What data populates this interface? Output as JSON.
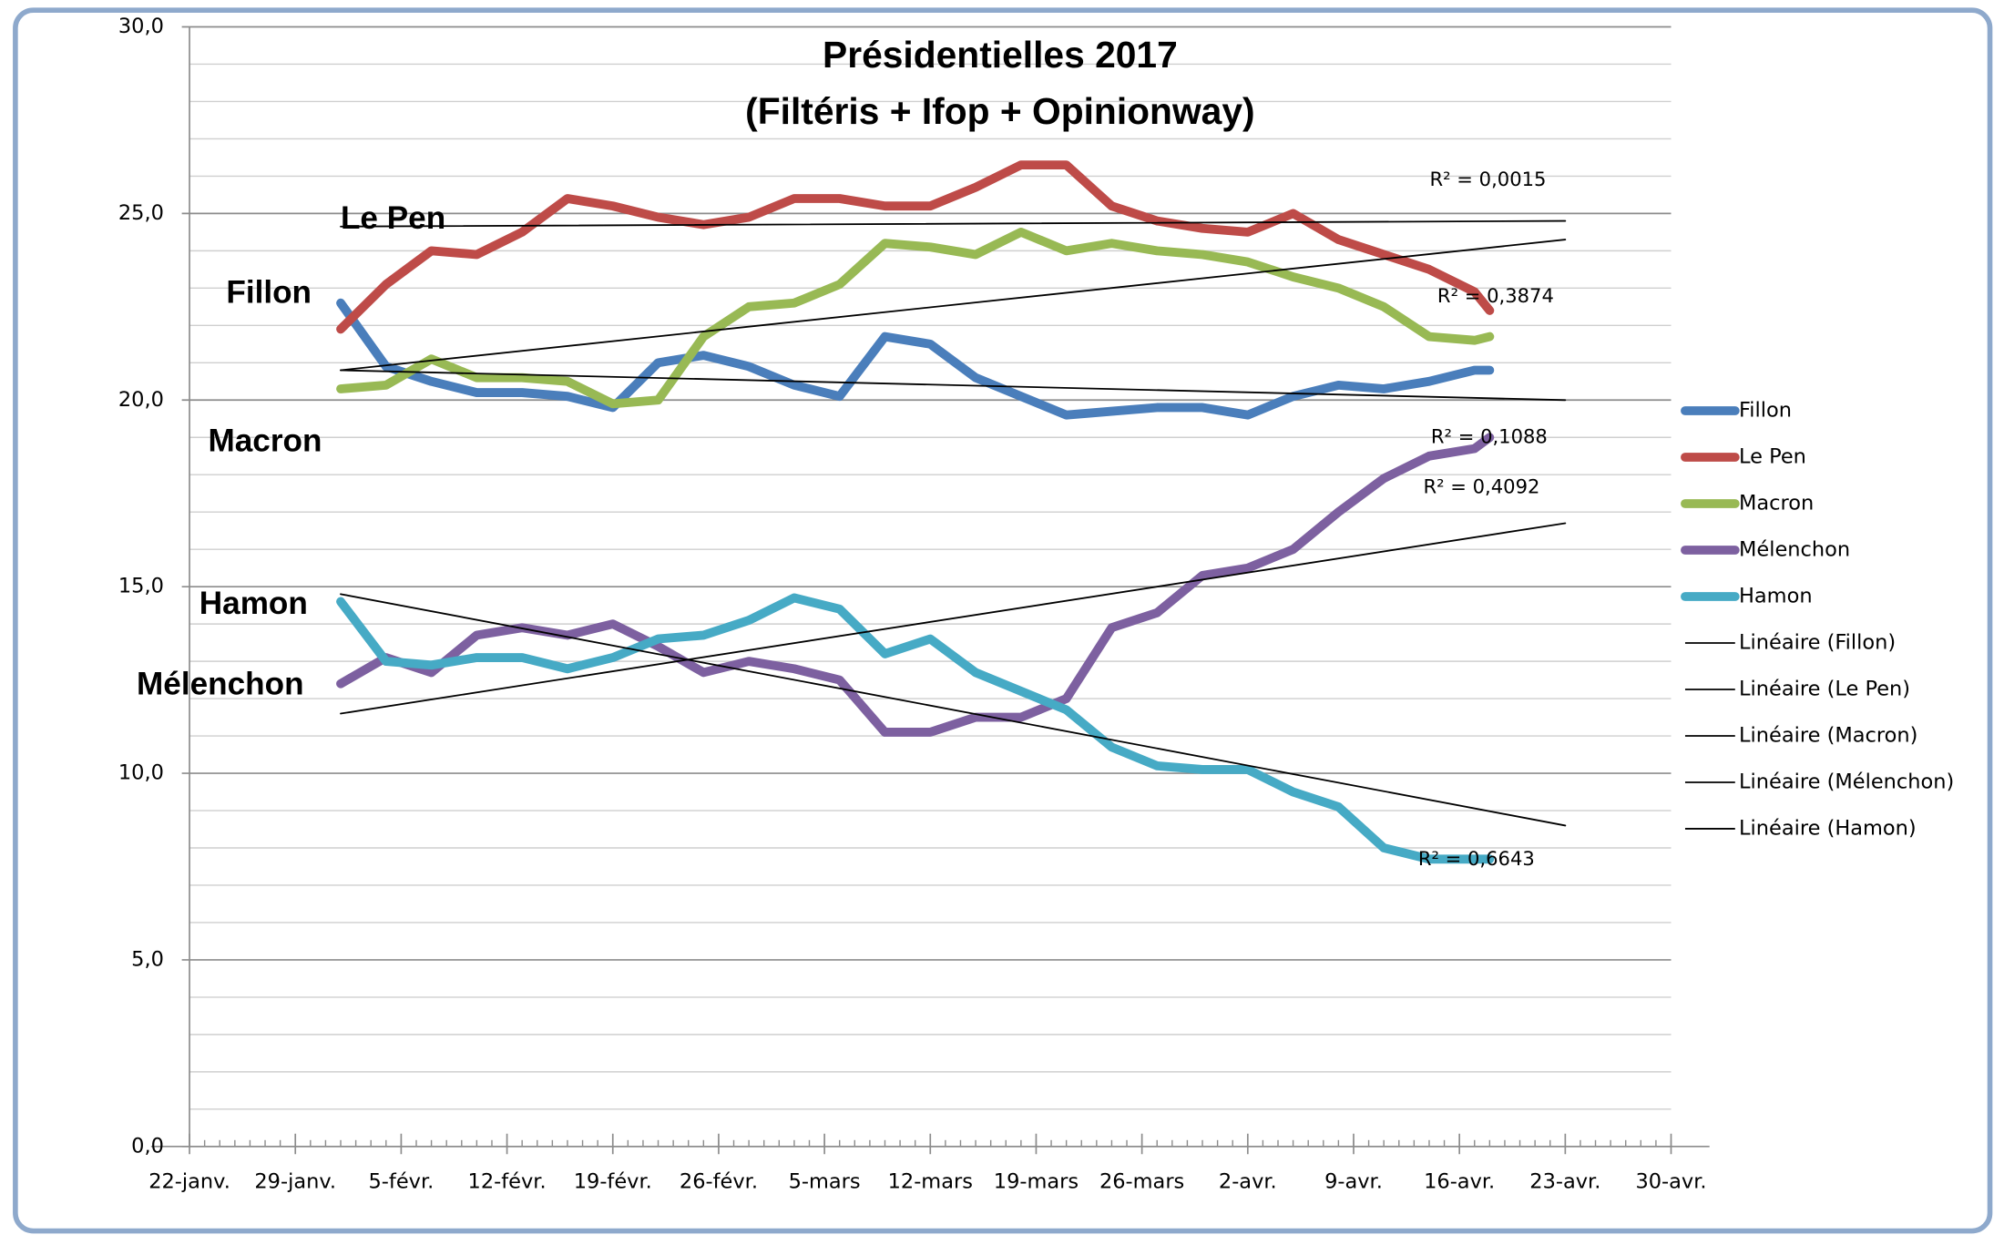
{
  "chart_data": {
    "type": "line",
    "title": [
      "Présidentielles 2017",
      "(Filtéris + Ifop + Opinionway)"
    ],
    "x": [
      "1-févr.",
      "4-févr.",
      "7-févr.",
      "10-févr.",
      "13-févr.",
      "16-févr.",
      "19-févr.",
      "22-févr.",
      "25-févr.",
      "28-févr.",
      "3-mars",
      "6-mars",
      "9-mars",
      "12-mars",
      "15-mars",
      "18-mars",
      "21-mars",
      "24-mars",
      "27-mars",
      "30-mars",
      "2-avr.",
      "5-avr.",
      "8-avr.",
      "11-avr.",
      "14-avr.",
      "17-avr.",
      "18-avr."
    ],
    "series": [
      {
        "name": "Fillon",
        "color": "#4a7ebb",
        "values": [
          22.6,
          20.9,
          20.5,
          20.2,
          20.2,
          20.1,
          19.8,
          21.0,
          21.2,
          20.9,
          20.4,
          20.1,
          21.7,
          21.5,
          20.6,
          20.1,
          19.6,
          19.7,
          19.8,
          19.8,
          19.6,
          20.1,
          20.4,
          20.3,
          20.5,
          20.8,
          20.8
        ]
      },
      {
        "name": "Le Pen",
        "color": "#be4b48",
        "values": [
          21.9,
          23.1,
          24.0,
          23.9,
          24.5,
          25.4,
          25.2,
          24.9,
          24.7,
          24.9,
          25.4,
          25.4,
          25.2,
          25.2,
          25.7,
          26.3,
          26.3,
          25.2,
          24.8,
          24.6,
          24.5,
          25.0,
          24.3,
          23.9,
          23.5,
          22.9,
          22.4
        ]
      },
      {
        "name": "Macron",
        "color": "#98b954",
        "values": [
          20.3,
          20.4,
          21.1,
          20.6,
          20.6,
          20.5,
          19.9,
          20.0,
          21.7,
          22.5,
          22.6,
          23.1,
          24.2,
          24.1,
          23.9,
          24.5,
          24.0,
          24.2,
          24.0,
          23.9,
          23.7,
          23.3,
          23.0,
          22.5,
          21.7,
          21.6,
          21.7
        ]
      },
      {
        "name": "Mélenchon",
        "color": "#7d60a0",
        "values": [
          12.4,
          13.1,
          12.7,
          13.7,
          13.9,
          13.7,
          14.0,
          13.4,
          12.7,
          13.0,
          12.8,
          12.5,
          11.1,
          11.1,
          11.5,
          11.5,
          12.0,
          13.9,
          14.3,
          15.3,
          15.5,
          16.0,
          17.0,
          17.9,
          18.5,
          18.7,
          19.0
        ]
      },
      {
        "name": "Hamon",
        "color": "#46aac5",
        "values": [
          14.6,
          13.0,
          12.9,
          13.1,
          13.1,
          12.8,
          13.1,
          13.6,
          13.7,
          14.1,
          14.7,
          14.4,
          13.2,
          13.6,
          12.7,
          12.2,
          11.7,
          10.7,
          10.2,
          10.1,
          10.1,
          9.5,
          9.1,
          8.0,
          7.7,
          7.7,
          7.7
        ]
      }
    ],
    "trendlines": [
      {
        "name": "Linéaire (Fillon)",
        "color": "#000000",
        "x": [
          "1-févr.",
          "23-avr."
        ],
        "values": [
          20.8,
          20.0
        ],
        "r2_label": "R² = 0,1088"
      },
      {
        "name": "Linéaire (Le Pen)",
        "color": "#000000",
        "x": [
          "1-févr.",
          "23-avr."
        ],
        "values": [
          24.65,
          24.8
        ],
        "r2_label": "R² = 0,0015"
      },
      {
        "name": "Linéaire (Macron)",
        "color": "#000000",
        "x": [
          "1-févr.",
          "23-avr."
        ],
        "values": [
          20.8,
          24.3
        ],
        "r2_label": "R² = 0,3874"
      },
      {
        "name": "Linéaire (Mélenchon)",
        "color": "#000000",
        "x": [
          "1-févr.",
          "23-avr."
        ],
        "values": [
          11.6,
          16.7
        ],
        "r2_label": "R² = 0,4092"
      },
      {
        "name": "Linéaire (Hamon)",
        "color": "#000000",
        "x": [
          "1-févr.",
          "23-avr."
        ],
        "values": [
          14.8,
          8.6
        ],
        "r2_label": "R² = 0,6643"
      }
    ],
    "annotations": [
      "Le Pen",
      "Fillon",
      "Macron",
      "Hamon",
      "Mélenchon"
    ],
    "xlim": [
      "22-janv.",
      "30-avr."
    ],
    "xticks": [
      "22-janv.",
      "29-janv.",
      "5-févr.",
      "12-févr.",
      "19-févr.",
      "26-févr.",
      "5-mars",
      "12-mars",
      "19-mars",
      "26-mars",
      "2-avr.",
      "9-avr.",
      "16-avr.",
      "23-avr.",
      "30-avr."
    ],
    "ylim": [
      0,
      30
    ],
    "yticks": [
      {
        "value": 0,
        "label": "0,0"
      },
      {
        "value": 5,
        "label": "5,0"
      },
      {
        "value": 10,
        "label": "10,0"
      },
      {
        "value": 15,
        "label": "15,0"
      },
      {
        "value": 20,
        "label": "20,0"
      },
      {
        "value": 25,
        "label": "25,0"
      },
      {
        "value": 30,
        "label": "30,0"
      }
    ],
    "yminorticks": [
      1,
      2,
      3,
      4,
      6,
      7,
      8,
      9,
      11,
      12,
      13,
      14,
      16,
      17,
      18,
      19,
      21,
      22,
      23,
      24,
      26,
      27,
      28,
      29
    ],
    "grid": true,
    "legend": "right"
  }
}
